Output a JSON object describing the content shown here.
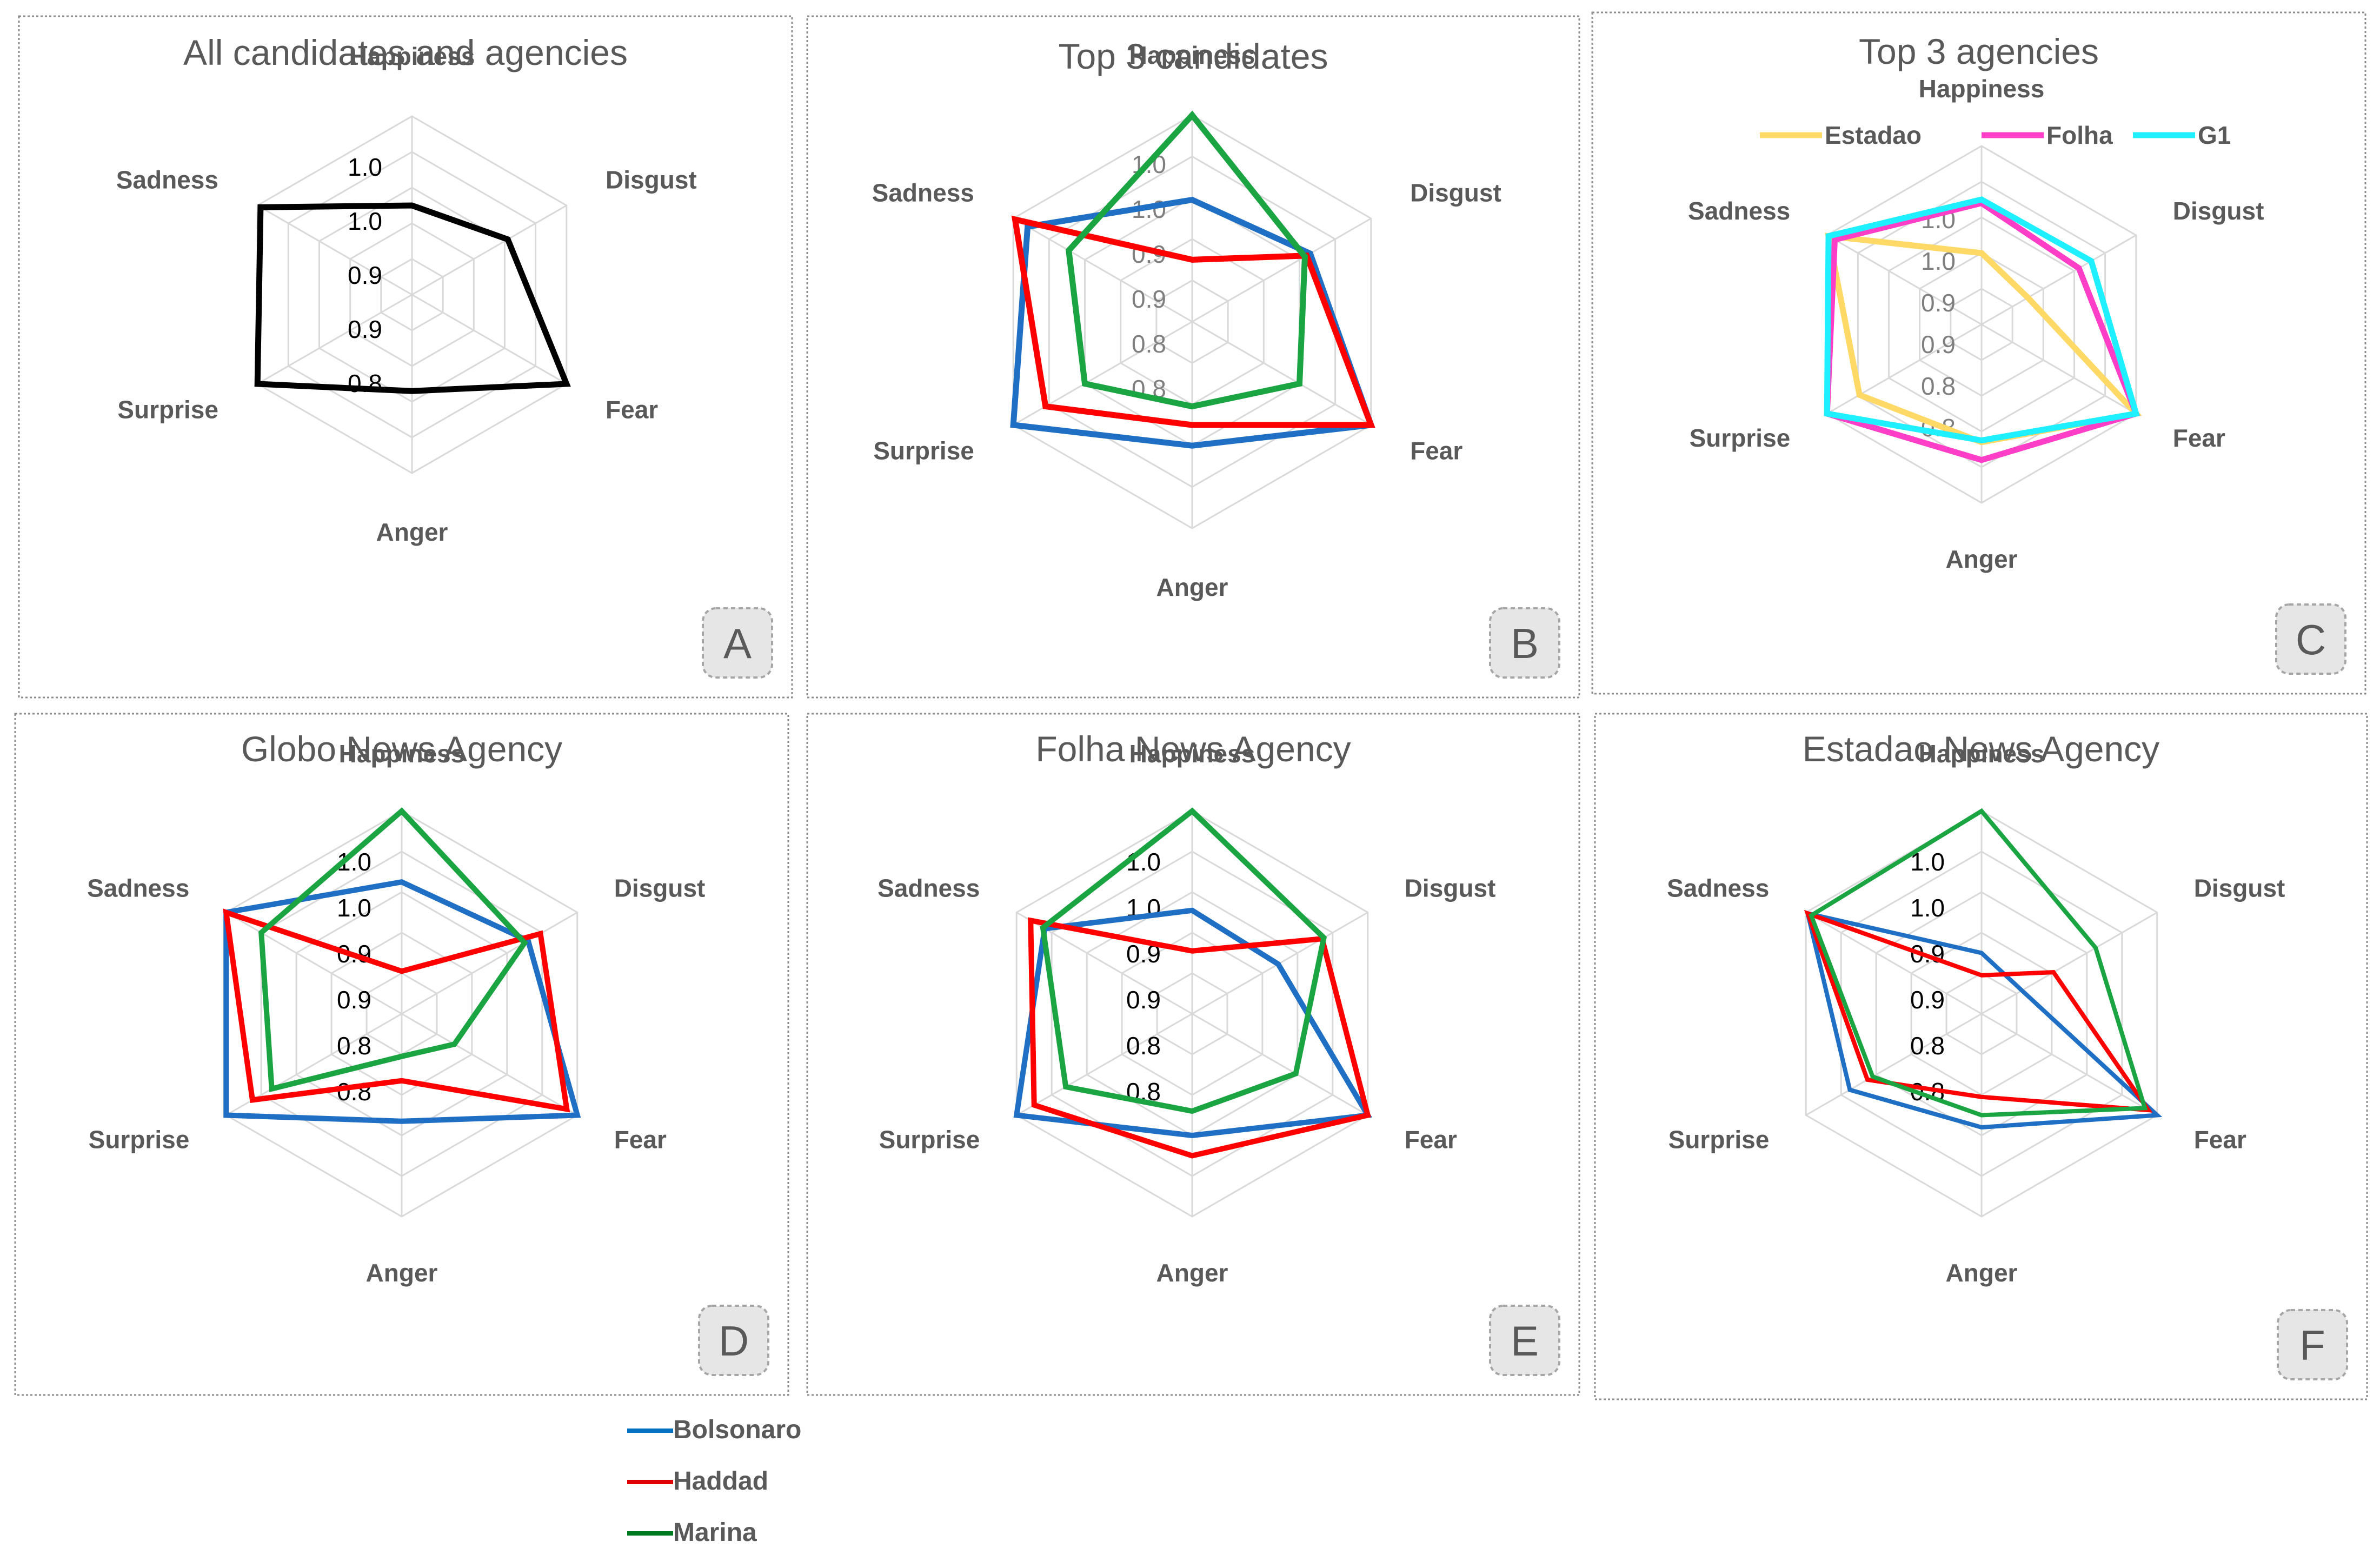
{
  "chart_data": [
    {
      "type": "radar",
      "panel_label": "A",
      "title": "All candidates and agencies",
      "axes": [
        "Happiness",
        "Disgust",
        "Fear",
        "Anger",
        "Surprise",
        "Sadness"
      ],
      "tick_labels": [
        "1.0",
        "1.0",
        "0.9",
        "0.9",
        "0.8"
      ],
      "series": [
        {
          "name": "All",
          "color": "#000000",
          "values": [
            0.5,
            0.62,
            1.0,
            0.54,
            1.0,
            0.98
          ]
        }
      ]
    },
    {
      "type": "radar",
      "panel_label": "B",
      "title": "Top 3 candidates",
      "axes": [
        "Happiness",
        "Disgust",
        "Fear",
        "Anger",
        "Surprise",
        "Sadness"
      ],
      "tick_labels": [
        "1.0",
        "1.0",
        "0.9",
        "0.9",
        "0.8",
        "0.8"
      ],
      "series": [
        {
          "name": "Bolsonaro",
          "color": "#1f6fc5",
          "values": [
            0.59,
            0.66,
            1.0,
            0.6,
            1.0,
            0.92
          ]
        },
        {
          "name": "Haddad",
          "color": "#ff0000",
          "values": [
            0.3,
            0.64,
            1.0,
            0.5,
            0.82,
            0.99
          ]
        },
        {
          "name": "Marina",
          "color": "#1aa442",
          "values": [
            1.0,
            0.63,
            0.6,
            0.41,
            0.6,
            0.69
          ]
        }
      ]
    },
    {
      "type": "radar",
      "panel_label": "C",
      "title": "Top 3 agencies",
      "axes": [
        "Happiness",
        "Disgust",
        "Fear",
        "Anger",
        "Surprise",
        "Sadness"
      ],
      "tick_labels": [
        "1.0",
        "1.0",
        "0.9",
        "0.9",
        "0.8",
        "0.8"
      ],
      "legend": [
        "Estadao",
        "Folha",
        "G1"
      ],
      "series": [
        {
          "name": "Estadao",
          "color": "#ffd966",
          "values": [
            0.4,
            0.3,
            1.0,
            0.66,
            0.79,
            0.99
          ]
        },
        {
          "name": "Folha",
          "color": "#ff3ec8",
          "values": [
            0.68,
            0.63,
            1.0,
            0.76,
            1.0,
            0.95
          ]
        },
        {
          "name": "G1",
          "color": "#1ff0ff",
          "values": [
            0.7,
            0.71,
            1.0,
            0.65,
            1.0,
            0.99
          ]
        }
      ]
    },
    {
      "type": "radar",
      "panel_label": "D",
      "title": "Globo News Agency",
      "axes": [
        "Happiness",
        "Disgust",
        "Fear",
        "Anger",
        "Surprise",
        "Sadness"
      ],
      "tick_labels": [
        "1.0",
        "1.0",
        "0.9",
        "0.9",
        "0.8",
        "0.8"
      ],
      "series": [
        {
          "name": "Bolsonaro",
          "color": "#1f6fc5",
          "values": [
            0.65,
            0.72,
            1.0,
            0.53,
            1.0,
            1.0
          ]
        },
        {
          "name": "Haddad",
          "color": "#ff0000",
          "values": [
            0.21,
            0.79,
            0.94,
            0.33,
            0.85,
            1.0
          ]
        },
        {
          "name": "Marina",
          "color": "#1aa442",
          "values": [
            1.0,
            0.7,
            0.3,
            0.21,
            0.74,
            0.8
          ]
        }
      ]
    },
    {
      "type": "radar",
      "panel_label": "E",
      "title": "Folha News Agency",
      "axes": [
        "Happiness",
        "Disgust",
        "Fear",
        "Anger",
        "Surprise",
        "Sadness"
      ],
      "tick_labels": [
        "1.0",
        "1.0",
        "0.9",
        "0.9",
        "0.8",
        "0.8"
      ],
      "series": [
        {
          "name": "Bolsonaro",
          "color": "#1f6fc5",
          "values": [
            0.51,
            0.49,
            1.0,
            0.6,
            1.0,
            0.84
          ]
        },
        {
          "name": "Haddad",
          "color": "#ff0000",
          "values": [
            0.31,
            0.74,
            1.0,
            0.7,
            0.9,
            0.92
          ]
        },
        {
          "name": "Marina",
          "color": "#1aa442",
          "values": [
            1.0,
            0.75,
            0.59,
            0.48,
            0.72,
            0.85
          ]
        }
      ]
    },
    {
      "type": "radar",
      "panel_label": "F",
      "title": "Estadao News Agency",
      "axes": [
        "Happiness",
        "Disgust",
        "Fear",
        "Anger",
        "Surprise",
        "Sadness"
      ],
      "tick_labels": [
        "1.0",
        "1.0",
        "0.9",
        "0.9",
        "0.8",
        "0.8"
      ],
      "series": [
        {
          "name": "Bolsonaro",
          "color": "#1f6fc5",
          "values": [
            0.3,
            0.23,
            1.0,
            0.56,
            0.75,
            0.99
          ]
        },
        {
          "name": "Haddad",
          "color": "#ff0000",
          "values": [
            0.19,
            0.41,
            0.95,
            0.41,
            0.65,
            0.99
          ]
        },
        {
          "name": "Marina",
          "color": "#1aa442",
          "values": [
            1.0,
            0.65,
            0.93,
            0.5,
            0.62,
            0.97
          ]
        }
      ]
    }
  ],
  "legend": {
    "entries": [
      {
        "name": "Bolsonaro",
        "color": "#0070c0"
      },
      {
        "name": "Haddad",
        "color": "#e00000"
      },
      {
        "name": "Marina",
        "color": "#007a20"
      }
    ]
  }
}
